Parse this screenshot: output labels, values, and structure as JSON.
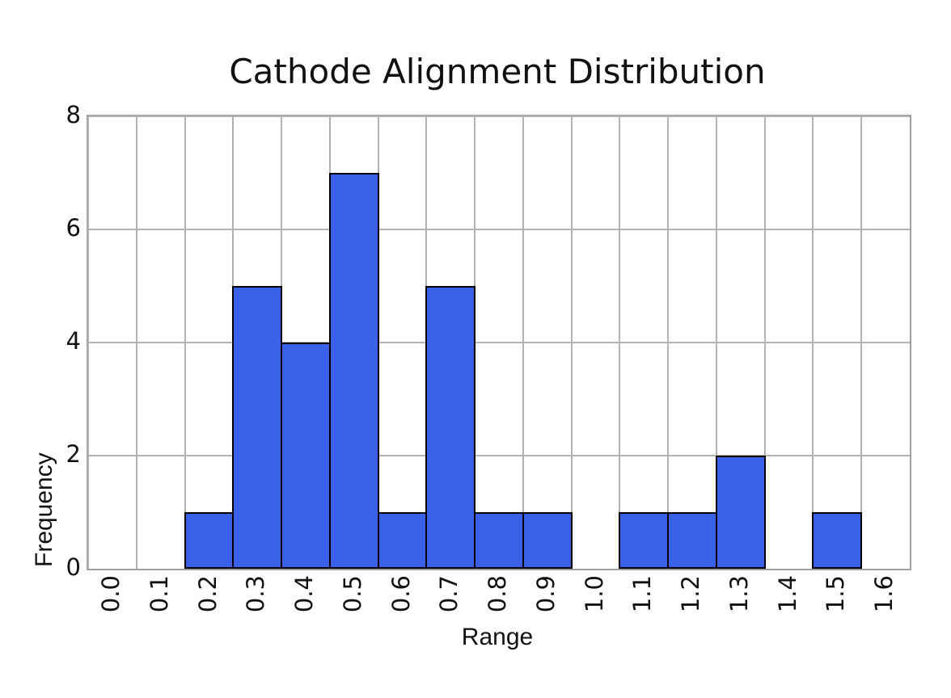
{
  "title": "Cathode Alignment Distribution",
  "chart_data": {
    "type": "bar",
    "subtype": "histogram",
    "title": "Cathode Alignment Distribution",
    "xlabel": "Range",
    "ylabel": "Frequency",
    "bin_edges": [
      0.2,
      0.3,
      0.4,
      0.5,
      0.6,
      0.7,
      0.8,
      0.9,
      1.0,
      1.1,
      1.2,
      1.3,
      1.4,
      1.5,
      1.6
    ],
    "counts": [
      1,
      5,
      4,
      7,
      1,
      5,
      1,
      1,
      0,
      1,
      1,
      2,
      0,
      1
    ],
    "x_tick_labels": [
      "0.0",
      "0.1",
      "0.2",
      "0.3",
      "0.4",
      "0.5",
      "0.6",
      "0.7",
      "0.8",
      "0.9",
      "1.0",
      "1.1",
      "1.2",
      "1.3",
      "1.4",
      "1.5",
      "1.6"
    ],
    "x_tick_values": [
      0.0,
      0.1,
      0.2,
      0.3,
      0.4,
      0.5,
      0.6,
      0.7,
      0.8,
      0.9,
      1.0,
      1.1,
      1.2,
      1.3,
      1.4,
      1.5,
      1.6
    ],
    "y_tick_labels": [
      "0",
      "2",
      "4",
      "6",
      "8"
    ],
    "y_tick_values": [
      0,
      2,
      4,
      6,
      8
    ],
    "xlim": [
      0.0,
      1.7
    ],
    "ylim": [
      0,
      8
    ],
    "grid": true,
    "legend": false,
    "x_tick_rotation": 90,
    "colors": {
      "bar_fill": "#3a62e8",
      "bar_edge": "#000000",
      "gridline": "#b2b2b2",
      "spine": "#a0a0a0",
      "text": "#111111",
      "background": "#ffffff"
    }
  }
}
